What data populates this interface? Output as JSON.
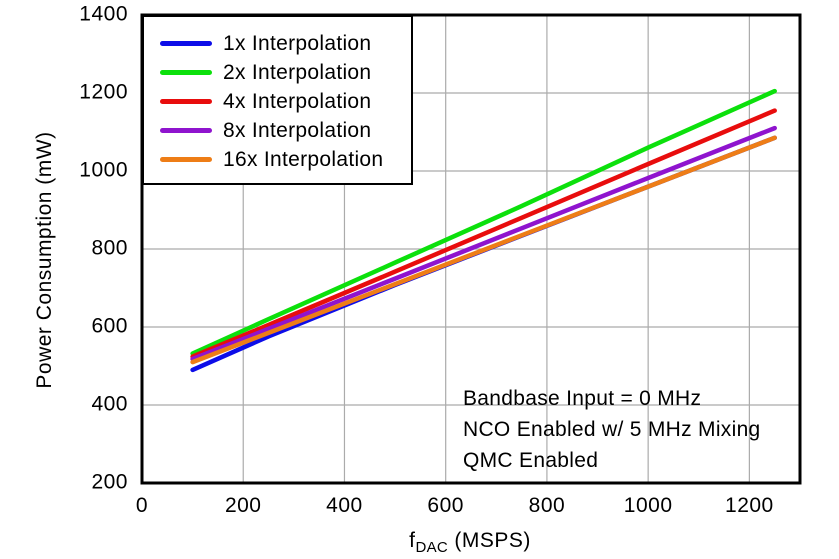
{
  "chart_data": {
    "type": "line",
    "title": "",
    "ylabel": "Power Consumption (mW)",
    "xlabel": "fDAC (MSPS)",
    "xlabel_parts": {
      "base": "f",
      "sub": "DAC",
      "rest": " (MSPS)"
    },
    "xlim": [
      0,
      1300
    ],
    "ylim": [
      200,
      1400
    ],
    "x_ticks": [
      0,
      200,
      400,
      600,
      800,
      1000,
      1200
    ],
    "y_ticks": [
      200,
      400,
      600,
      800,
      1000,
      1200,
      1400
    ],
    "grid": true,
    "legend_position": "top-left",
    "x": [
      100,
      250,
      500,
      750,
      1000,
      1250
    ],
    "series": [
      {
        "name": "1x Interpolation",
        "color": "#0D0DE8",
        "values": [
          490,
          576,
          708,
          834,
          960,
          1085
        ]
      },
      {
        "name": "2x Interpolation",
        "color": "#0CE00C",
        "values": [
          532,
          620,
          765,
          910,
          1060,
          1205
        ]
      },
      {
        "name": "4x Interpolation",
        "color": "#E80D0D",
        "values": [
          524,
          605,
          742,
          880,
          1018,
          1155
        ]
      },
      {
        "name": "8x Interpolation",
        "color": "#8F14CE",
        "values": [
          518,
          595,
          724,
          853,
          982,
          1110
        ]
      },
      {
        "name": "16x Interpolation",
        "color": "#EE7D16",
        "values": [
          510,
          585,
          710,
          835,
          960,
          1085
        ]
      }
    ],
    "annotations": [
      "Bandbase Input =  0 MHz",
      "NCO Enabled w/ 5 MHz Mixing",
      "QMC Enabled"
    ]
  },
  "colors": {
    "grid": "#ABABAB",
    "frame": "#000000",
    "background": "#FFFFFF"
  }
}
